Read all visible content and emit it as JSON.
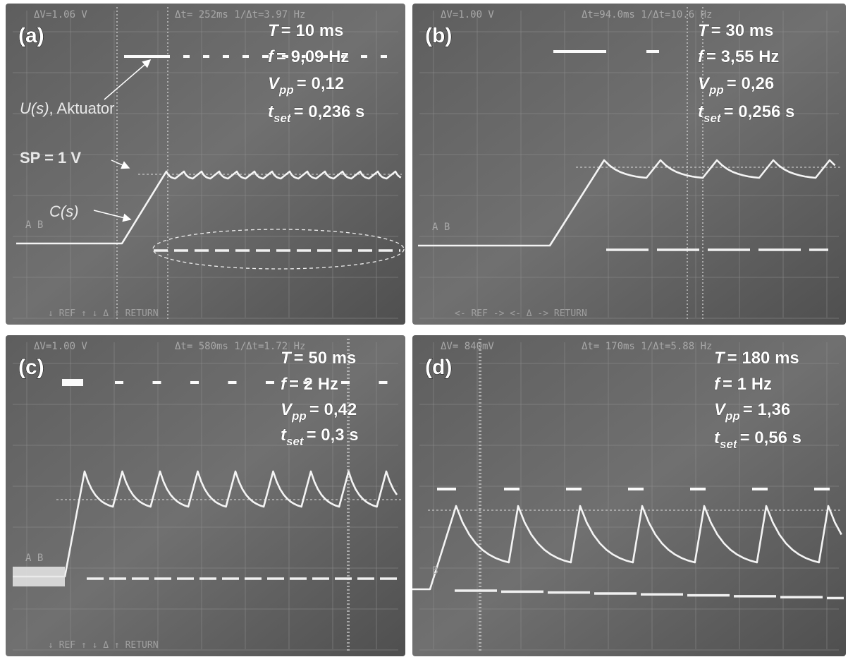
{
  "panels": [
    {
      "label": "(a)",
      "readout": "ΔV=1.06 V",
      "readout_time": "Δt= 252ms 1/Δt=3.97 Hz",
      "channel": "A B",
      "params": [
        {
          "symbol": "T",
          "text": "= 10 ms"
        },
        {
          "symbol": "f",
          "text": "= 9,09 Hz"
        },
        {
          "symbol": "V",
          "sub": "pp",
          "text": "= 0,12"
        },
        {
          "symbol": "t",
          "sub": "set",
          "text": "= 0,236 s"
        }
      ],
      "menu": "↓    REF   ↑       ↓     Δ    ↑       RETURN"
    },
    {
      "label": "(b)",
      "readout": "ΔV=1.00 V",
      "readout_time": "Δt=94.0ms 1/Δt=10.6 Hz",
      "channel": "A B",
      "params": [
        {
          "symbol": "T",
          "text": "= 30 ms"
        },
        {
          "symbol": "f",
          "text": "= 3,55 Hz"
        },
        {
          "symbol": "V",
          "sub": "pp",
          "text": "= 0,26"
        },
        {
          "symbol": "t",
          "sub": "set",
          "text": "= 0,256 s"
        }
      ],
      "menu": "<-   REF  ->        <-    Δ    ->       RETURN"
    },
    {
      "label": "(c)",
      "readout": "ΔV=1.00 V",
      "readout_time": "Δt= 580ms 1/Δt=1.72 Hz",
      "channel": "A B",
      "params": [
        {
          "symbol": "T",
          "text": "= 50 ms"
        },
        {
          "symbol": "f",
          "text": "= 2 Hz"
        },
        {
          "symbol": "V",
          "sub": "pp",
          "text": "= 0,42"
        },
        {
          "symbol": "t",
          "sub": "set",
          "text": "= 0,3 s"
        }
      ],
      "menu": "↓    REF   ↑       ↓     Δ    ↑       RETURN"
    },
    {
      "label": "(d)",
      "readout": "ΔV= 840mV",
      "readout_time": "Δt= 170ms 1/Δt=5.88 Hz",
      "channel": "B",
      "params": [
        {
          "symbol": "T",
          "text": "= 180 ms"
        },
        {
          "symbol": "f",
          "text": "= 1 Hz"
        },
        {
          "symbol": "V",
          "sub": "pp",
          "text": "= 1,36"
        },
        {
          "symbol": "t",
          "sub": "set",
          "text": "= 0,56 s"
        }
      ]
    }
  ],
  "annotations": {
    "actuator": {
      "symbol": "U(s)",
      "text": ", Aktuator"
    },
    "setpoint": "SP = 1 V",
    "output": "C(s)"
  }
}
